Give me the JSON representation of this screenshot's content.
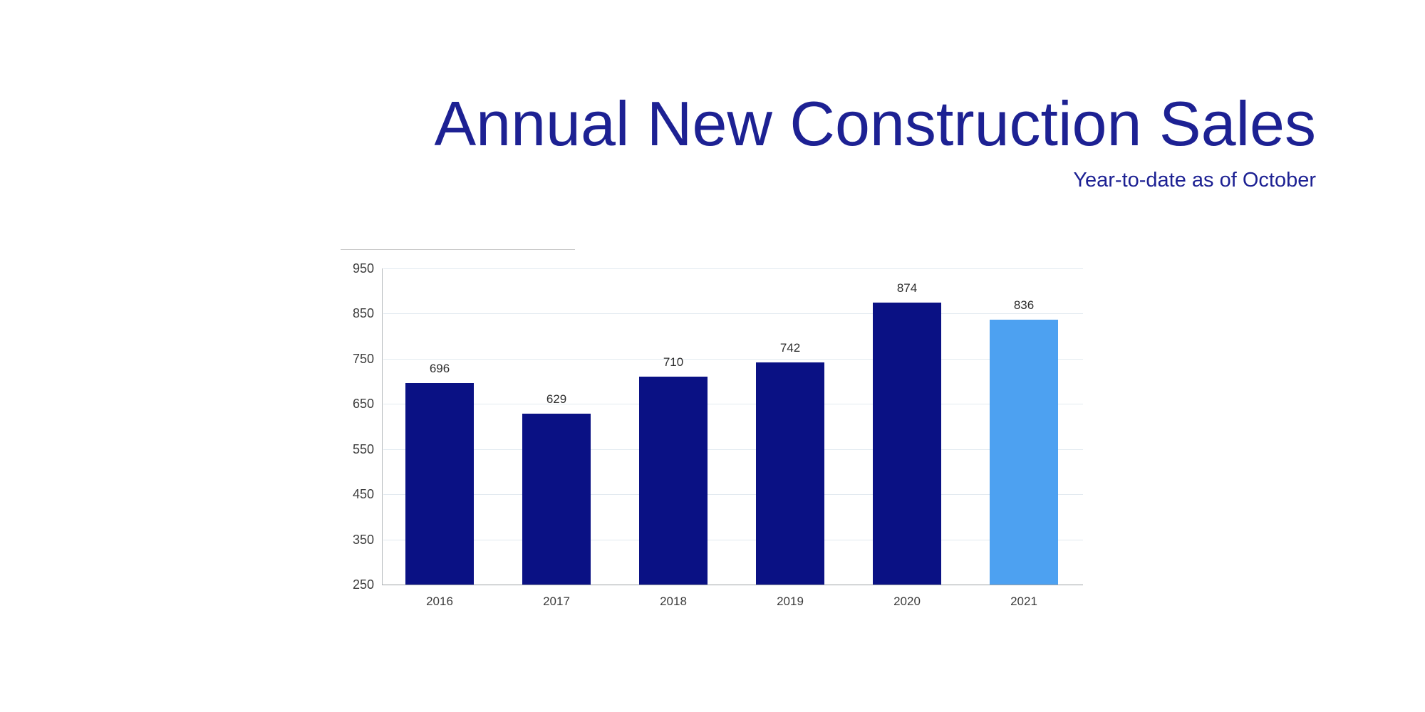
{
  "header": {
    "title": "Annual New Construction Sales",
    "subtitle": "Year-to-date as of October"
  },
  "chart_data": {
    "type": "bar",
    "title": "Annual New Construction Sales",
    "subtitle": "Year-to-date as of October",
    "categories": [
      "2016",
      "2017",
      "2018",
      "2019",
      "2020",
      "2021"
    ],
    "values": [
      696,
      629,
      710,
      742,
      874,
      836
    ],
    "data_labels": [
      "696",
      "629",
      "710",
      "742",
      "874",
      "836"
    ],
    "xlabel": "",
    "ylabel": "",
    "ylim": [
      250,
      950
    ],
    "yticks": [
      250,
      350,
      450,
      550,
      650,
      750,
      850,
      950
    ],
    "grid": true,
    "legend": "none",
    "bar_color_default": "#0a1184",
    "bar_color_highlight": "#4da1f1",
    "highlight_index": 5
  },
  "colors": {
    "background": "#ffffff",
    "title_text": "#1d2193",
    "tick_text": "#3c3c3c",
    "value_label_text": "#2e2e2e",
    "gridline": "#e2eaf0",
    "y_axis_line": "#b6babd",
    "x_axis_line": "#9ca1a4",
    "artifact_line": "#c8c8c8"
  }
}
